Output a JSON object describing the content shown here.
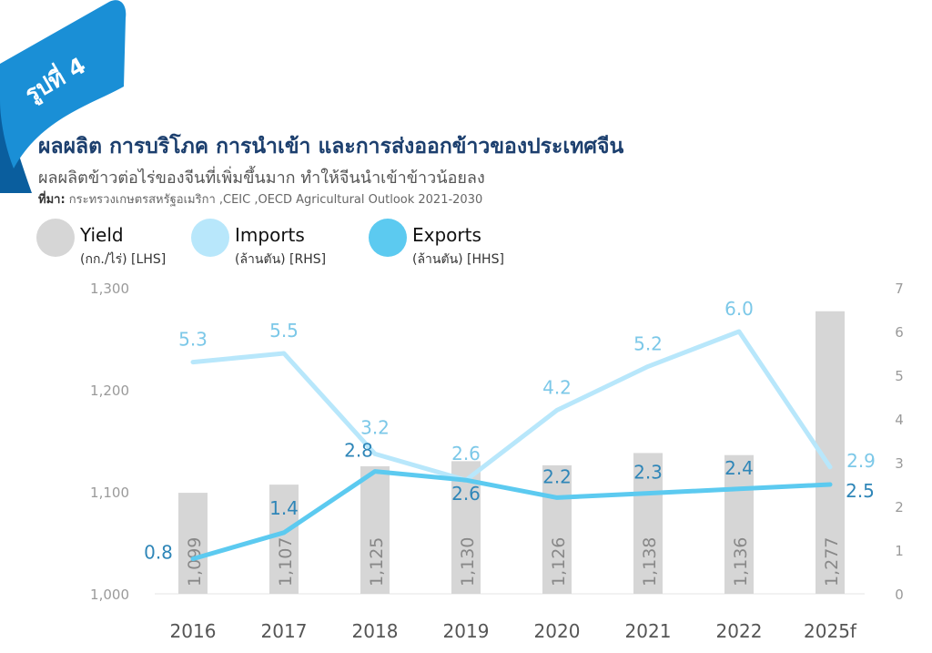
{
  "badge": {
    "label": "รูปที่ 4",
    "color": "#1a8fd6"
  },
  "header": {
    "title": "ผลผลิต การบริโภค การนำเข้า และการส่งออกข้าวของประเทศจีน",
    "subtitle": "ผลผลิตข้าวต่อไร่ของจีนที่เพิ่มขึ้นมาก ทำให้จีนนำเข้าข้าวน้อยลง",
    "source_label": "ที่มา:",
    "source_text": " กระทรวงเกษตรสหรัฐอเมริกา ,CEIC ,OECD Agricultural Outlook 2021-2030"
  },
  "legend": [
    {
      "name": "Yield",
      "unit": "(กก./ไร่) [LHS]",
      "color": "#d6d6d6",
      "icon": "gray-circle"
    },
    {
      "name": "Imports",
      "unit": "(ล้านตัน) [RHS]",
      "color": "#b8e7fb",
      "icon": "light-blue-circle"
    },
    {
      "name": "Exports",
      "unit": "(ล้านตัน) [HHS]",
      "color": "#5ccaf0",
      "icon": "blue-circle"
    }
  ],
  "chart_data": {
    "type": "bar",
    "categories": [
      "2016",
      "2017",
      "2018",
      "2019",
      "2020",
      "2021",
      "2022",
      "2025f"
    ],
    "series": [
      {
        "name": "Yield",
        "kind": "bar",
        "axis": "left",
        "color": "#d6d6d6",
        "values": [
          1099,
          1107,
          1125,
          1130,
          1126,
          1138,
          1136,
          1277
        ],
        "labels": [
          "1,099",
          "1,107",
          "1,125",
          "1,130",
          "1,126",
          "1,138",
          "1,136",
          "1,277"
        ]
      },
      {
        "name": "Imports",
        "kind": "line",
        "axis": "right",
        "color": "#b8e7fb",
        "values": [
          5.3,
          5.5,
          3.2,
          2.6,
          4.2,
          5.2,
          6.0,
          2.9
        ],
        "labels": [
          "5.3",
          "5.5",
          "3.2",
          "2.6",
          "4.2",
          "5.2",
          "6.0",
          "2.9"
        ]
      },
      {
        "name": "Exports",
        "kind": "line",
        "axis": "right",
        "color": "#5ccaf0",
        "values": [
          0.8,
          1.4,
          2.8,
          2.6,
          2.2,
          2.3,
          2.4,
          2.5
        ],
        "labels": [
          "0.8",
          "1.4",
          "2.8",
          "2.6",
          "2.2",
          "2.3",
          "2.4",
          "2.5"
        ]
      }
    ],
    "left_axis": {
      "ylim": [
        1000,
        1300
      ],
      "ticks": [
        1000,
        1100,
        1200,
        1300
      ],
      "tick_labels": [
        "1,000",
        "1,100",
        "1,200",
        "1,300"
      ]
    },
    "right_axis": {
      "ylim": [
        0,
        7
      ],
      "ticks": [
        0,
        1,
        2,
        3,
        4,
        5,
        6,
        7
      ],
      "tick_labels": [
        "0",
        "1",
        "2",
        "3",
        "4",
        "5",
        "6",
        "7"
      ]
    },
    "grid": false,
    "legend_position": "top-left",
    "imports_label_color": "#7cc8e8",
    "exports_label_color": "#2f86b8"
  }
}
